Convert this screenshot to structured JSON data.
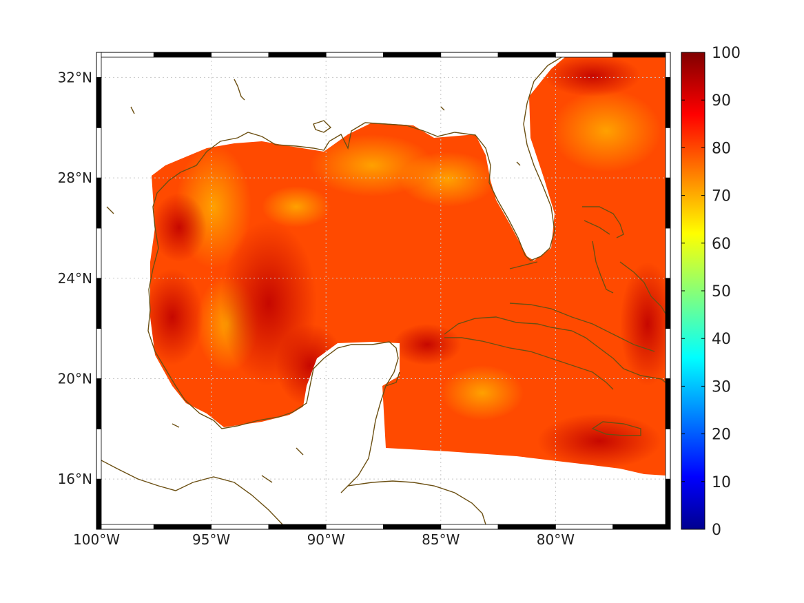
{
  "map": {
    "lon_range": [
      -100,
      -75
    ],
    "lat_range": [
      14,
      33
    ],
    "lon_ticks": [
      {
        "value": -100,
        "label": "100°W"
      },
      {
        "value": -95,
        "label": "95°W"
      },
      {
        "value": -90,
        "label": "90°W"
      },
      {
        "value": -85,
        "label": "85°W"
      },
      {
        "value": -80,
        "label": "80°W"
      }
    ],
    "lat_ticks": [
      {
        "value": 32,
        "label": "32°N"
      },
      {
        "value": 28,
        "label": "28°N"
      },
      {
        "value": 24,
        "label": "24°N"
      },
      {
        "value": 20,
        "label": "20°N"
      },
      {
        "value": 16,
        "label": "16°N"
      }
    ],
    "grid": true,
    "colors": {
      "coastline": "#6b4f12",
      "grid": "#c8c8c8",
      "frame": "#000000"
    }
  },
  "colorbar": {
    "min": 0,
    "max": 100,
    "colormap": "jet",
    "tick_labels": [
      "0",
      "10",
      "20",
      "30",
      "40",
      "50",
      "60",
      "70",
      "80",
      "90",
      "100"
    ]
  }
}
